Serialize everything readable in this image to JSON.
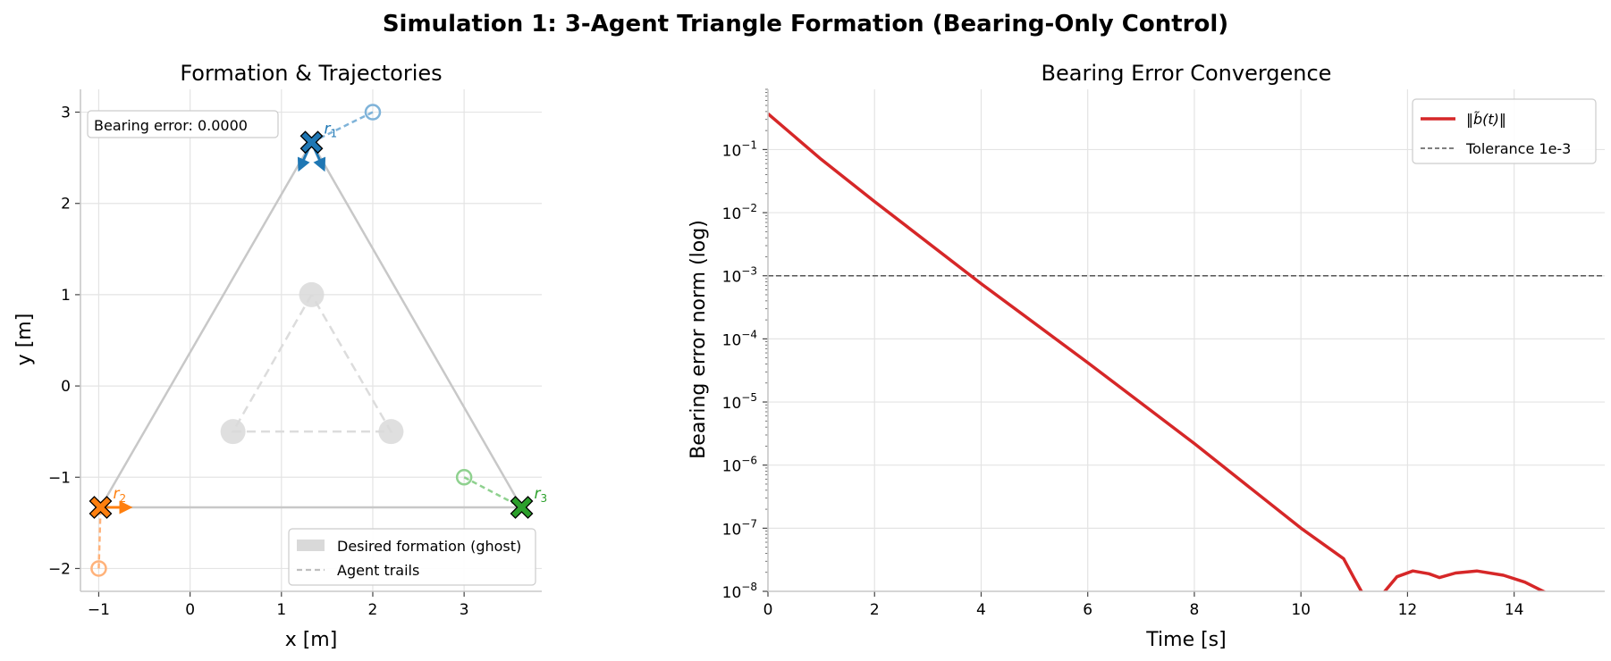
{
  "figure": {
    "title": "Simulation 1: 3-Agent Triangle Formation (Bearing-Only Control)"
  },
  "chart_data": [
    {
      "type": "scatter",
      "title": "Formation & Trajectories",
      "xlabel": "x [m]",
      "ylabel": "y [m]",
      "xlim": [
        -1.2,
        3.85
      ],
      "ylim": [
        -2.25,
        3.25
      ],
      "xticks": [
        -1,
        0,
        1,
        2,
        3
      ],
      "yticks": [
        -2,
        -1,
        0,
        1,
        2,
        3
      ],
      "grid": true,
      "annotation": "Bearing error: 0.0000",
      "legend_location": "lower right",
      "legend": [
        {
          "label": "Desired formation (ghost)",
          "style": "patch",
          "color": "#d9d9d9"
        },
        {
          "label": "Agent trails",
          "style": "dashed",
          "color": "#bfbfbf"
        }
      ],
      "desired_formation": [
        {
          "x": 1.33,
          "y": 1.0
        },
        {
          "x": 0.47,
          "y": -0.5
        },
        {
          "x": 2.2,
          "y": -0.5
        }
      ],
      "final_formation": [
        {
          "x": 1.33,
          "y": 2.67
        },
        {
          "x": -0.98,
          "y": -1.33
        },
        {
          "x": 3.63,
          "y": -1.33
        }
      ],
      "agents": [
        {
          "name": "r1",
          "label_main": "r",
          "label_sub": "1",
          "color": "#1f77b4",
          "light": "#7fb3d9",
          "start": {
            "x": 2.0,
            "y": 3.0
          },
          "end": {
            "x": 1.33,
            "y": 2.67
          }
        },
        {
          "name": "r2",
          "label_main": "r",
          "label_sub": "2",
          "color": "#ff7f0e",
          "light": "#ffb27a",
          "start": {
            "x": -1.0,
            "y": -2.0
          },
          "end": {
            "x": -0.98,
            "y": -1.33
          }
        },
        {
          "name": "r3",
          "label_main": "r",
          "label_sub": "3",
          "color": "#2ca02c",
          "light": "#8fd18f",
          "start": {
            "x": 3.0,
            "y": -1.0
          },
          "end": {
            "x": 3.63,
            "y": -1.33
          }
        }
      ]
    },
    {
      "type": "line",
      "title": "Bearing Error Convergence",
      "xlabel": "Time [s]",
      "ylabel": "Bearing error norm (log)",
      "xlim": [
        0,
        15.7
      ],
      "ylim": [
        1e-08,
        0.9
      ],
      "yscale": "log",
      "xticks": [
        0,
        2,
        4,
        6,
        8,
        10,
        12,
        14
      ],
      "yticks": [
        {
          "base": "10",
          "exp": "−1",
          "value": 0.1
        },
        {
          "base": "10",
          "exp": "−2",
          "value": 0.01
        },
        {
          "base": "10",
          "exp": "−3",
          "value": 0.001
        },
        {
          "base": "10",
          "exp": "−4",
          "value": 0.0001
        },
        {
          "base": "10",
          "exp": "−5",
          "value": 1e-05
        },
        {
          "base": "10",
          "exp": "−6",
          "value": 1e-06
        },
        {
          "base": "10",
          "exp": "−7",
          "value": 1e-07
        },
        {
          "base": "10",
          "exp": "−8",
          "value": 1e-08
        }
      ],
      "grid": true,
      "legend_location": "upper right",
      "tolerance": {
        "value": 0.001,
        "label": "Tolerance 1e-3",
        "color": "#555555"
      },
      "series": [
        {
          "name": "‖b̃(t)‖",
          "color": "#d62728",
          "points": [
            {
              "x": 0.0,
              "y": 0.37
            },
            {
              "x": 1.0,
              "y": 0.07
            },
            {
              "x": 2.0,
              "y": 0.015
            },
            {
              "x": 4.0,
              "y": 0.00075
            },
            {
              "x": 6.0,
              "y": 4.2e-05
            },
            {
              "x": 8.0,
              "y": 2.2e-06
            },
            {
              "x": 10.0,
              "y": 1e-07
            },
            {
              "x": 10.8,
              "y": 3.3e-08
            },
            {
              "x": 11.0,
              "y": 1.6e-08
            },
            {
              "x": 11.15,
              "y": 9.5e-09
            }
          ]
        },
        {
          "name": "",
          "color": "#d62728",
          "points": [
            {
              "x": 11.55,
              "y": 9.5e-09
            },
            {
              "x": 11.8,
              "y": 1.7e-08
            },
            {
              "x": 12.1,
              "y": 2.1e-08
            },
            {
              "x": 12.4,
              "y": 1.9e-08
            },
            {
              "x": 12.6,
              "y": 1.65e-08
            },
            {
              "x": 12.9,
              "y": 1.95e-08
            },
            {
              "x": 13.3,
              "y": 2.1e-08
            },
            {
              "x": 13.8,
              "y": 1.8e-08
            },
            {
              "x": 14.2,
              "y": 1.4e-08
            },
            {
              "x": 14.6,
              "y": 9.5e-09
            }
          ]
        }
      ]
    }
  ]
}
